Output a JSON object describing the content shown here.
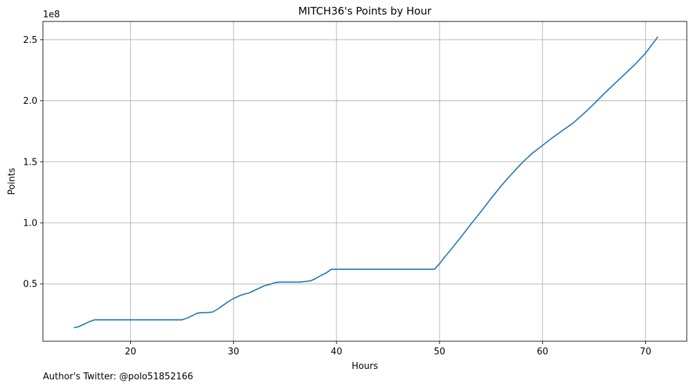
{
  "footer": "Author's Twitter: @polo51852166",
  "chart_data": {
    "type": "line",
    "title": "MITCH36's Points by Hour",
    "xlabel": "Hours",
    "ylabel": "Points",
    "y_offset_label": "1e8",
    "xlim": [
      11.5,
      74.0
    ],
    "ylim": [
      0.03,
      2.65
    ],
    "x_ticks": [
      20,
      30,
      40,
      50,
      60,
      70
    ],
    "x_tick_labels": [
      "20",
      "30",
      "40",
      "50",
      "60",
      "70"
    ],
    "y_ticks": [
      0.5,
      1.0,
      1.5,
      2.0,
      2.5
    ],
    "y_tick_labels": [
      "0.5",
      "1.0",
      "1.5",
      "2.0",
      "2.5"
    ],
    "grid": true,
    "line_color": "#1f77b4",
    "series": [
      {
        "x": [
          14.5,
          15,
          15.5,
          16,
          16.5,
          17,
          18,
          20,
          22,
          24,
          25,
          25.5,
          26,
          26.5,
          27,
          27.5,
          28,
          28.5,
          29,
          29.5,
          30,
          30.5,
          31,
          31.5,
          32,
          32.5,
          33,
          33.5,
          34,
          34.5,
          35,
          36,
          36.5,
          37,
          37.5,
          38,
          38.5,
          39,
          39.5,
          40,
          42,
          45,
          48,
          49.5,
          50,
          50.5,
          51,
          52,
          53,
          54,
          55,
          56,
          57,
          58,
          59,
          60,
          61,
          62,
          63,
          64,
          65,
          66,
          67,
          68,
          69,
          70,
          71.2
        ],
        "y": [
          0.14,
          0.15,
          0.17,
          0.19,
          0.205,
          0.205,
          0.205,
          0.205,
          0.205,
          0.205,
          0.205,
          0.22,
          0.24,
          0.26,
          0.265,
          0.265,
          0.27,
          0.295,
          0.325,
          0.355,
          0.38,
          0.4,
          0.415,
          0.425,
          0.445,
          0.465,
          0.485,
          0.495,
          0.51,
          0.515,
          0.515,
          0.515,
          0.515,
          0.52,
          0.525,
          0.545,
          0.57,
          0.59,
          0.62,
          0.62,
          0.62,
          0.62,
          0.62,
          0.62,
          0.665,
          0.72,
          0.77,
          0.875,
          0.985,
          1.09,
          1.2,
          1.305,
          1.4,
          1.49,
          1.57,
          1.635,
          1.7,
          1.76,
          1.82,
          1.895,
          1.975,
          2.06,
          2.14,
          2.22,
          2.3,
          2.39,
          2.525
        ]
      }
    ]
  }
}
